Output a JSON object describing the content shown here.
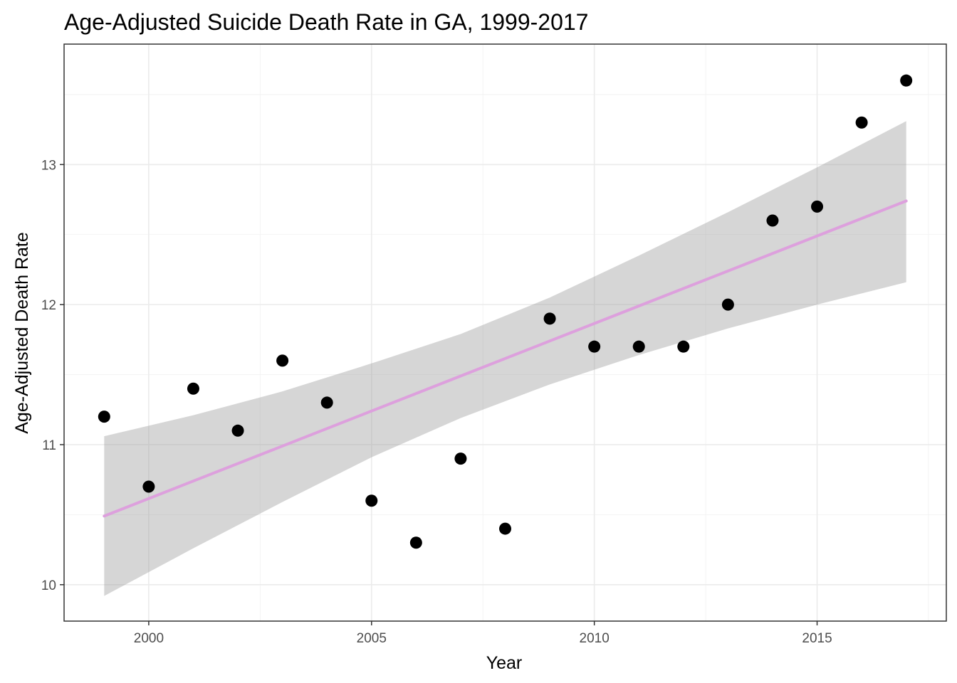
{
  "chart_data": {
    "type": "scatter",
    "title": "Age-Adjusted Suicide Death Rate in GA, 1999-2017",
    "xlabel": "Year",
    "ylabel": "Age-Adjusted Death Rate",
    "xlim": [
      1998.1,
      2017.9
    ],
    "ylim": [
      9.74,
      13.86
    ],
    "x_ticks": [
      2000,
      2005,
      2010,
      2015
    ],
    "y_ticks": [
      10,
      11,
      12,
      13
    ],
    "x_tick_labels": [
      "2000",
      "2005",
      "2010",
      "2015"
    ],
    "y_tick_labels": [
      "10",
      "11",
      "12",
      "13"
    ],
    "x_minor_ticks": [
      2002.5,
      2007.5,
      2012.5,
      2017.5
    ],
    "y_minor_ticks": [
      9.5,
      10.5,
      11.5,
      12.5,
      13.5
    ],
    "grid": true,
    "legend": "none",
    "series": [
      {
        "name": "observed",
        "x": [
          1999,
          2000,
          2001,
          2002,
          2003,
          2004,
          2005,
          2006,
          2007,
          2008,
          2009,
          2010,
          2011,
          2012,
          2013,
          2014,
          2015,
          2016,
          2017
        ],
        "y": [
          11.2,
          10.7,
          11.4,
          11.1,
          11.6,
          11.3,
          10.6,
          10.3,
          10.9,
          10.4,
          11.9,
          11.7,
          11.7,
          11.7,
          12.0,
          12.6,
          12.7,
          13.3,
          13.6
        ]
      }
    ],
    "fit": {
      "method": "linear",
      "x_start": 1999,
      "x_end": 2017,
      "y_start": 10.49,
      "y_end": 12.74,
      "ci_x": [
        1999,
        2001,
        2003,
        2005,
        2007,
        2009,
        2011,
        2013,
        2015,
        2017
      ],
      "ci_lower": [
        9.92,
        10.26,
        10.59,
        10.91,
        11.19,
        11.43,
        11.64,
        11.83,
        12.0,
        12.16
      ],
      "ci_upper": [
        11.06,
        11.21,
        11.38,
        11.58,
        11.79,
        12.05,
        12.35,
        12.66,
        12.98,
        13.31
      ]
    },
    "colors": {
      "point": "#000000",
      "fit_line": "#dda0dd",
      "ribbon": "#999999",
      "panel_border": "#333333",
      "grid_major": "#ebebeb",
      "grid_minor": "#f2f2f2",
      "tick_label": "#4d4d4d"
    }
  }
}
